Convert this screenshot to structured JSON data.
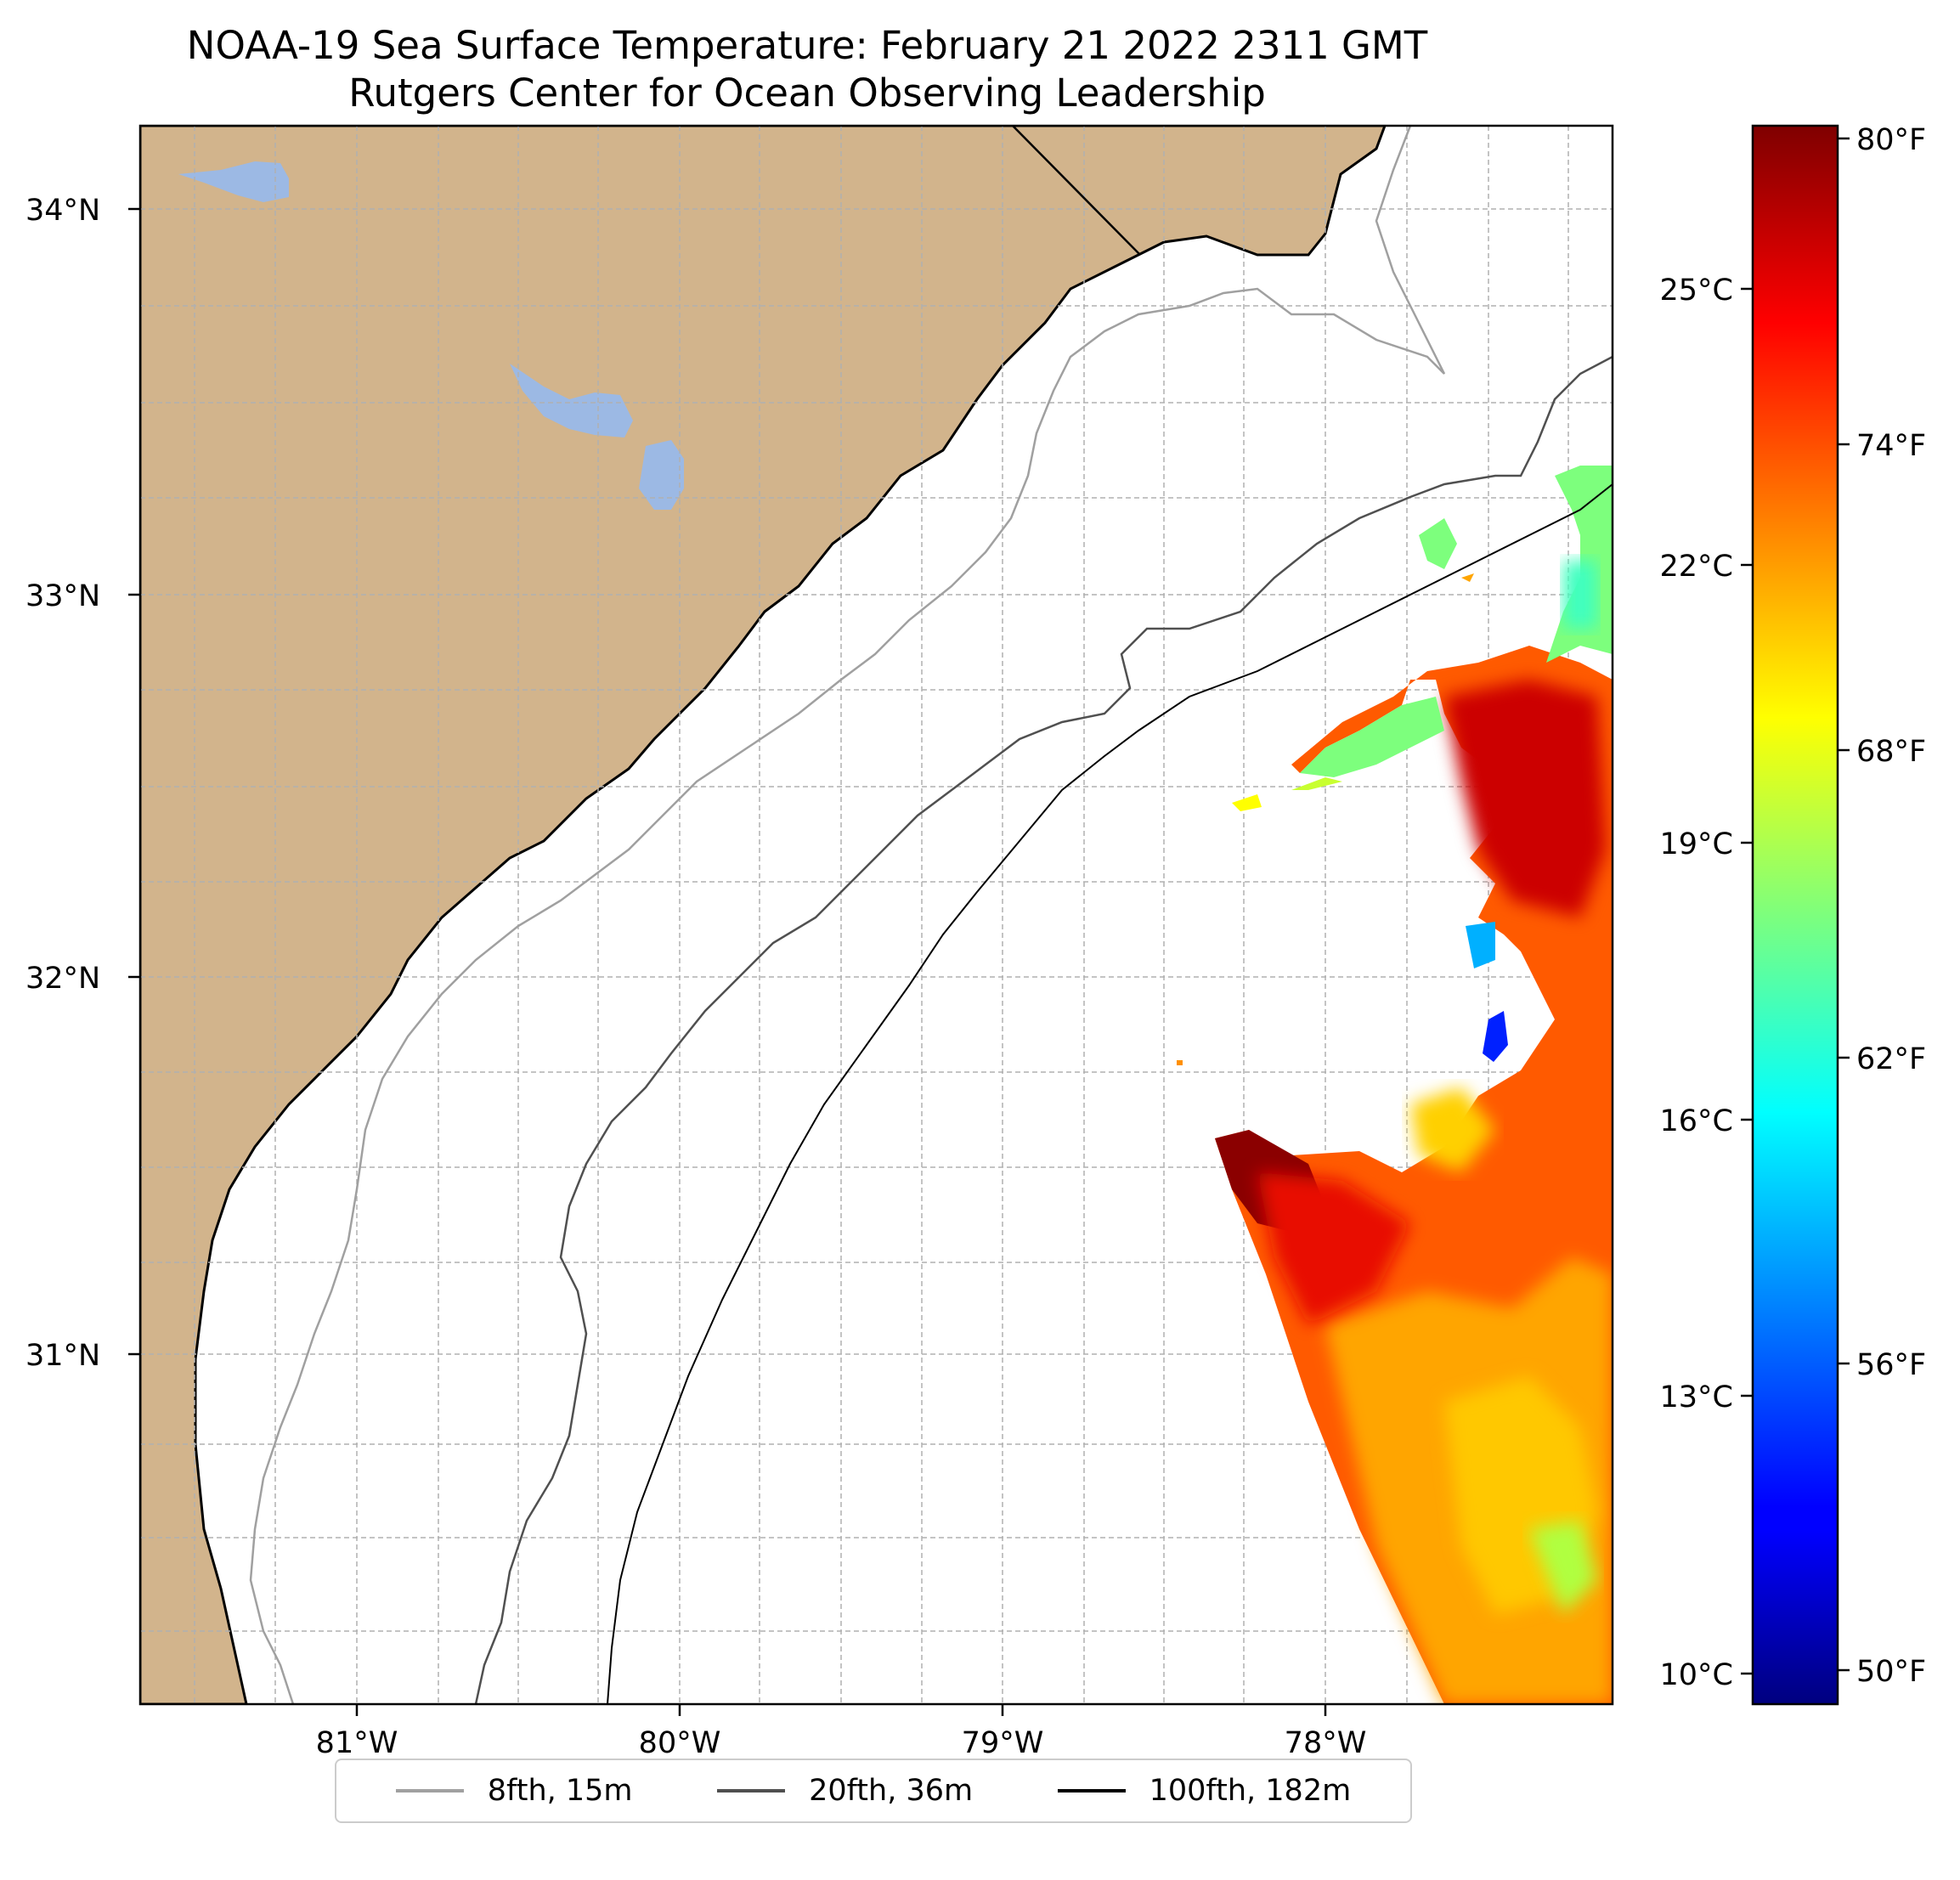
{
  "title": {
    "line1": "NOAA-19 Sea Surface Temperature: February 21 2022 2311 GMT",
    "line2": "Rutgers Center for Ocean Observing Leadership"
  },
  "axes": {
    "lat_labels": [
      "34°N",
      "33°N",
      "32°N",
      "31°N"
    ],
    "lon_labels": [
      "81°W",
      "80°W",
      "79°W",
      "78°W"
    ]
  },
  "colorbar": {
    "celsius_labels": [
      "25°C",
      "22°C",
      "19°C",
      "16°C",
      "13°C",
      "10°C"
    ],
    "fahrenheit_labels": [
      "80°F",
      "74°F",
      "68°F",
      "62°F",
      "56°F",
      "50°F"
    ],
    "range_f": [
      49.5,
      80.5
    ],
    "colormap": "jet"
  },
  "legend": {
    "items": [
      {
        "label": "8fth, 15m",
        "color": "#a0a0a0"
      },
      {
        "label": "20fth, 36m",
        "color": "#505050"
      },
      {
        "label": "100fth, 182m",
        "color": "#000000"
      }
    ]
  },
  "colors": {
    "land": "#d2b48c",
    "water_bodies": "#9cb9e4",
    "grid": "#b0b0b0"
  }
}
